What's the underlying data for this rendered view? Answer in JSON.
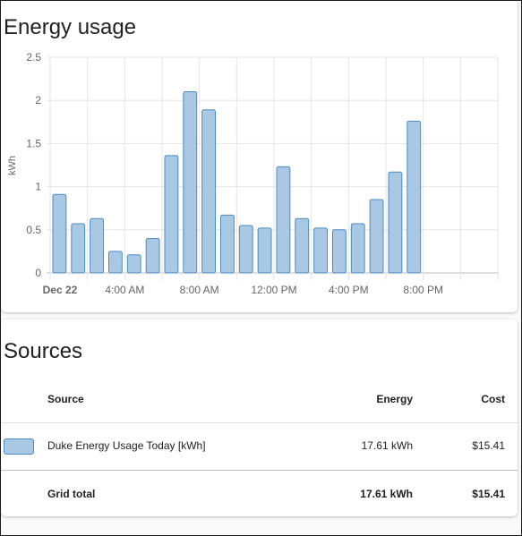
{
  "energy": {
    "title": "Energy usage",
    "y_unit_label": "kWh"
  },
  "chart_data": {
    "type": "bar",
    "title": "",
    "ylabel": "kWh",
    "xlabel": "",
    "ylim": [
      0,
      2.5
    ],
    "y_ticks": [
      "0",
      "0.5",
      "1",
      "1.5",
      "2",
      "2.5"
    ],
    "x_tick_labels": [
      {
        "label": "Dec 22",
        "hour": 0,
        "bold": true
      },
      {
        "label": "4:00 AM",
        "hour": 4,
        "bold": false
      },
      {
        "label": "8:00 AM",
        "hour": 8,
        "bold": false
      },
      {
        "label": "12:00 PM",
        "hour": 12,
        "bold": false
      },
      {
        "label": "4:00 PM",
        "hour": 16,
        "bold": false
      },
      {
        "label": "8:00 PM",
        "hour": 20,
        "bold": false
      }
    ],
    "hours": [
      0,
      1,
      2,
      3,
      4,
      5,
      6,
      7,
      8,
      9,
      10,
      11,
      12,
      13,
      14,
      15,
      16,
      17,
      18,
      19
    ],
    "values": [
      0.91,
      0.57,
      0.63,
      0.25,
      0.21,
      0.4,
      1.36,
      2.1,
      1.89,
      0.67,
      0.55,
      0.52,
      1.23,
      0.63,
      0.52,
      0.5,
      0.57,
      0.85,
      1.17,
      1.76
    ],
    "bar_color": "#a8c8e4",
    "bar_border": "#4c8bc2",
    "grid": true
  },
  "sources": {
    "title": "Sources",
    "headers": {
      "source": "Source",
      "energy": "Energy",
      "cost": "Cost"
    },
    "rows": [
      {
        "name": "Duke Energy Usage Today [kWh]",
        "energy": "17.61 kWh",
        "cost": "$15.41",
        "color": "#a8c8e4"
      }
    ],
    "total": {
      "label": "Grid total",
      "energy": "17.61 kWh",
      "cost": "$15.41"
    }
  }
}
